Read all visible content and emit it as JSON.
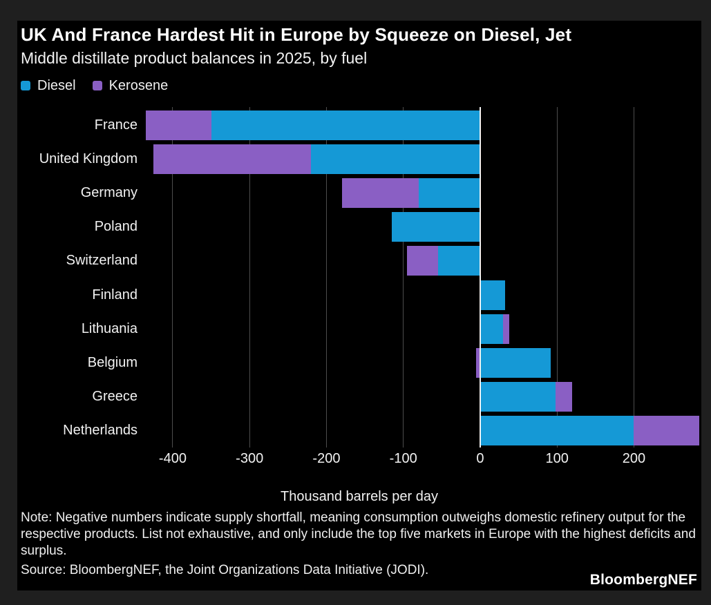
{
  "header": {
    "title": "UK And France Hardest Hit in Europe by Squeeze on Diesel, Jet",
    "subtitle": "Middle distillate product balances in 2025, by fuel"
  },
  "legend": [
    {
      "label": "Diesel",
      "color": "#1599d6",
      "icon": "diesel-swatch-icon"
    },
    {
      "label": "Kerosene",
      "color": "#8a5fc4",
      "icon": "kerosene-swatch-icon"
    }
  ],
  "chart_data": {
    "type": "bar",
    "orientation": "horizontal",
    "stacked": true,
    "title": "UK And France Hardest Hit in Europe by Squeeze on Diesel, Jet",
    "subtitle": "Middle distillate product balances in 2025, by fuel",
    "categories": [
      "France",
      "United Kingdom",
      "Germany",
      "Poland",
      "Switzerland",
      "Finland",
      "Lithuania",
      "Belgium",
      "Greece",
      "Netherlands"
    ],
    "series": [
      {
        "name": "Diesel",
        "color": "#1599d6",
        "values": [
          -350,
          -220,
          -80,
          -115,
          -55,
          32,
          30,
          92,
          98,
          200
        ]
      },
      {
        "name": "Kerosene",
        "color": "#8a5fc4",
        "values": [
          -85,
          -205,
          -100,
          0,
          -40,
          0,
          8,
          -5,
          22,
          85
        ]
      }
    ],
    "xlabel": "Thousand barrels per day",
    "ylabel": "",
    "xlim": [
      -435,
      285
    ],
    "xticks": [
      -400,
      -300,
      -200,
      -100,
      0,
      100,
      200
    ],
    "grid": true,
    "legend_position": "top-left",
    "gridline_color": "#4d4d4d",
    "zero_line_color": "#f2f2f2",
    "plot_background": "#000000",
    "frame_background": "#1f1f1f"
  },
  "footer": {
    "note": "Note: Negative numbers indicate supply shortfall, meaning consumption outweighs domestic refinery output for the respective products. List not exhaustive, and only include the top five markets in Europe with the highest deficits and surplus.",
    "source": "Source: BloombergNEF, the Joint Organizations Data Initiative (JODI).",
    "brand": "BloombergNEF"
  }
}
